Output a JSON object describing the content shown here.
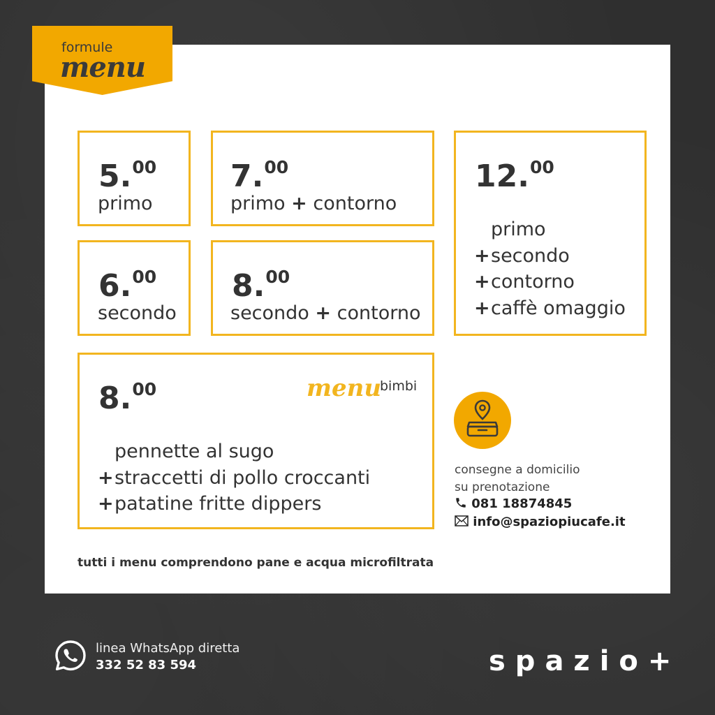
{
  "header": {
    "ribbon_small": "formule",
    "ribbon_big": "menu"
  },
  "formule": [
    {
      "price_int": "5.",
      "price_dec": "00",
      "lines": [
        {
          "plus": "",
          "text": "primo"
        }
      ]
    },
    {
      "price_int": "7.",
      "price_dec": "00",
      "lines": [
        {
          "plus": "",
          "text": "primo"
        },
        {
          "plus": "+",
          "text": "contorno"
        }
      ]
    },
    {
      "price_int": "6.",
      "price_dec": "00",
      "lines": [
        {
          "plus": "",
          "text": "secondo"
        }
      ]
    },
    {
      "price_int": "8.",
      "price_dec": "00",
      "lines": [
        {
          "plus": "",
          "text": "secondo"
        },
        {
          "plus": "+",
          "text": "contorno"
        }
      ]
    },
    {
      "price_int": "12.",
      "price_dec": "00",
      "lines": [
        {
          "plus": "",
          "text": "primo"
        },
        {
          "plus": "+",
          "text": "secondo"
        },
        {
          "plus": "+",
          "text": "contorno"
        },
        {
          "plus": "+",
          "text": "caffè omaggio"
        }
      ]
    }
  ],
  "bimbi": {
    "price_int": "8.",
    "price_dec": "00",
    "script": "menu",
    "word": "bimbi",
    "lines": [
      {
        "plus": "",
        "text": "pennette al sugo"
      },
      {
        "plus": "+",
        "text": "straccetti di pollo croccanti"
      },
      {
        "plus": "+",
        "text": "patatine fritte dippers"
      }
    ]
  },
  "delivery": {
    "icon": "delivery-icon",
    "line1": "consegne a domicilio",
    "line2": "su prenotazione",
    "phone": "081 18874845",
    "email": "info@spaziopiucafe.it"
  },
  "note": "tutti i menu comprendono pane e acqua microfiltrata",
  "whatsapp": {
    "label": "linea WhatsApp diretta",
    "number": "332 52 83 594"
  },
  "brand": "spazio+",
  "colors": {
    "accent": "#f2a800",
    "box_border": "#f2b51f",
    "background": "#2f2f2f",
    "card": "#ffffff",
    "text": "#333333"
  }
}
